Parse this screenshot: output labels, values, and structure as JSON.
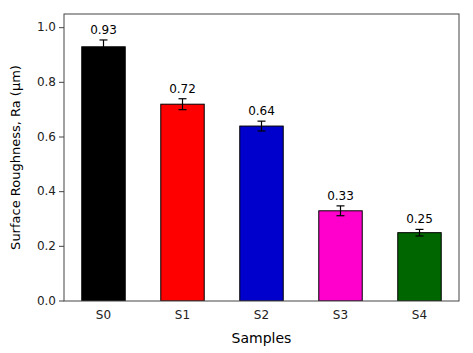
{
  "chart_data": {
    "type": "bar",
    "categories": [
      "S0",
      "S1",
      "S2",
      "S3",
      "S4"
    ],
    "values": [
      0.93,
      0.72,
      0.64,
      0.33,
      0.25
    ],
    "errors": [
      0.025,
      0.02,
      0.018,
      0.018,
      0.012
    ],
    "colors": [
      "#000000",
      "#ff0000",
      "#0000cc",
      "#ff00cc",
      "#006600"
    ],
    "xlabel": "Samples",
    "ylabel": "Surface Roughness, Ra (μm)",
    "ylim": [
      0.0,
      1.05
    ],
    "yticks": [
      {
        "value": 0.0,
        "label": "0.0"
      },
      0.2,
      0.4,
      0.6,
      0.8,
      {
        "value": 1.0,
        "label": "1.0"
      }
    ],
    "data_labels": true,
    "grid": false
  }
}
